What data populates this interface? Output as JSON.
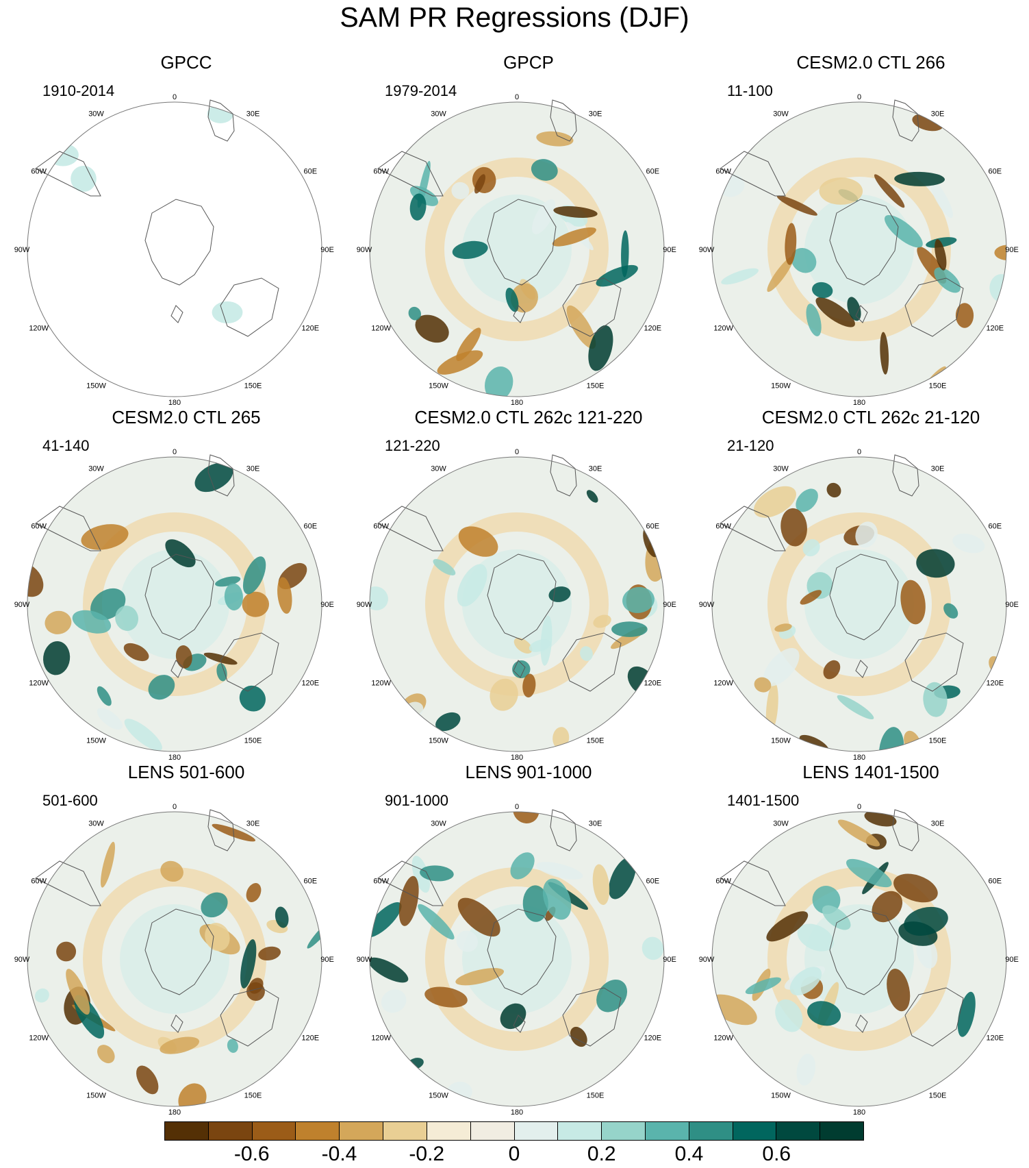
{
  "title": "SAM PR Regressions (DJF)",
  "lon_labels": [
    "0",
    "30E",
    "60E",
    "90E",
    "120E",
    "150E",
    "180",
    "150W",
    "120W",
    "90W",
    "60W",
    "30W"
  ],
  "panels": [
    {
      "title": "GPCC",
      "period": "1910-2014",
      "ocean_data": false
    },
    {
      "title": "GPCP",
      "period": "1979-2014",
      "ocean_data": true
    },
    {
      "title": "CESM2.0 CTL 266",
      "period": "11-100",
      "ocean_data": true
    },
    {
      "title": "CESM2.0 CTL 265",
      "period": "41-140",
      "ocean_data": true
    },
    {
      "title": "CESM2.0 CTL 262c 121-220",
      "period": "121-220",
      "ocean_data": true
    },
    {
      "title": "CESM2.0 CTL 262c 21-120",
      "period": "21-120",
      "ocean_data": true
    },
    {
      "title": "LENS 501-600",
      "period": "501-600",
      "ocean_data": true
    },
    {
      "title": "LENS 901-1000",
      "period": "901-1000",
      "ocean_data": true
    },
    {
      "title": "LENS 1401-1500",
      "period": "1401-1500",
      "ocean_data": true
    }
  ],
  "colorbar": {
    "colors": [
      "#543005",
      "#7a4510",
      "#9b5c18",
      "#bf812d",
      "#d4a75a",
      "#e9cf94",
      "#f5ecd6",
      "#f1ede2",
      "#e3efed",
      "#c7eae5",
      "#96d4ca",
      "#5ab4ac",
      "#2f8f85",
      "#01665e",
      "#00493f",
      "#003c30"
    ],
    "tick_labels": [
      "-0.6",
      "-0.4",
      "-0.2",
      "0",
      "0.2",
      "0.4",
      "0.6"
    ],
    "tick_values": [
      -0.6,
      -0.4,
      -0.2,
      0,
      0.2,
      0.4,
      0.6
    ]
  }
}
